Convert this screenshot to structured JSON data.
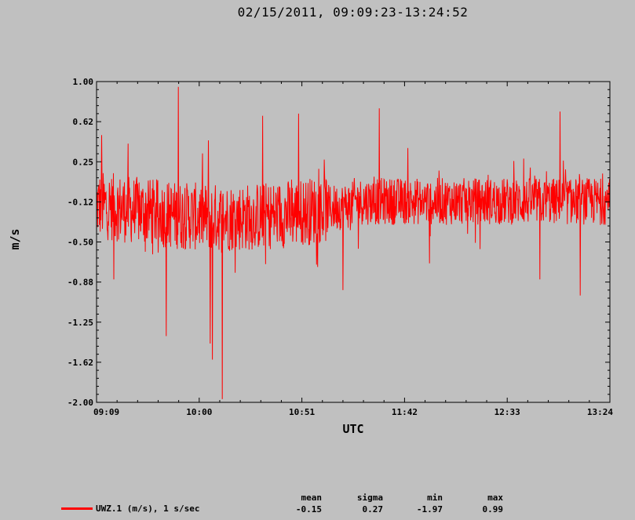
{
  "chart_data": {
    "type": "line",
    "title": "02/15/2011, 09:09:23-13:24:52",
    "xlabel": "UTC",
    "ylabel": "m/s",
    "x_ticks": [
      "09:09",
      "10:00",
      "10:51",
      "11:42",
      "12:33",
      "13:24"
    ],
    "y_ticks": [
      "1.00",
      "0.62",
      "0.25",
      "-0.12",
      "-0.50",
      "-0.88",
      "-1.25",
      "-1.62",
      "-2.00"
    ],
    "ylim": [
      -2.0,
      1.0
    ],
    "xlim": [
      "09:09",
      "13:24"
    ],
    "series": [
      {
        "name": "UWZ.1 (m/s), 1 s/sec",
        "color": "#ff0000",
        "description_points": [
          {
            "t": "09:09",
            "v": -0.15
          },
          {
            "t": "09:12",
            "v": 0.5
          },
          {
            "t": "09:18",
            "v": -0.85
          },
          {
            "t": "09:25",
            "v": 0.42
          },
          {
            "t": "09:40",
            "v": -0.6
          },
          {
            "t": "09:44",
            "v": 0.98
          },
          {
            "t": "09:44",
            "v": -1.38
          },
          {
            "t": "09:50",
            "v": 0.95
          },
          {
            "t": "10:05",
            "v": 0.45
          },
          {
            "t": "10:06",
            "v": -1.45
          },
          {
            "t": "10:07",
            "v": -1.6
          },
          {
            "t": "10:12",
            "v": 0.85
          },
          {
            "t": "10:12",
            "v": -1.97
          },
          {
            "t": "10:32",
            "v": 0.68
          },
          {
            "t": "10:50",
            "v": 0.7
          },
          {
            "t": "11:12",
            "v": 0.99
          },
          {
            "t": "11:12",
            "v": -0.95
          },
          {
            "t": "11:30",
            "v": 0.75
          },
          {
            "t": "11:55",
            "v": -0.7
          },
          {
            "t": "12:42",
            "v": 0.28
          },
          {
            "t": "12:50",
            "v": -0.85
          },
          {
            "t": "13:00",
            "v": 0.72
          },
          {
            "t": "13:10",
            "v": -1.0
          },
          {
            "t": "13:24",
            "v": -0.2
          }
        ]
      }
    ],
    "stats": {
      "mean_label": "mean",
      "mean": "-0.15",
      "sigma_label": "sigma",
      "sigma": "0.27",
      "min_label": "min",
      "min": "-1.97",
      "max_label": "max",
      "max": "0.99"
    },
    "grid": false,
    "legend_position": "bottom-left"
  }
}
